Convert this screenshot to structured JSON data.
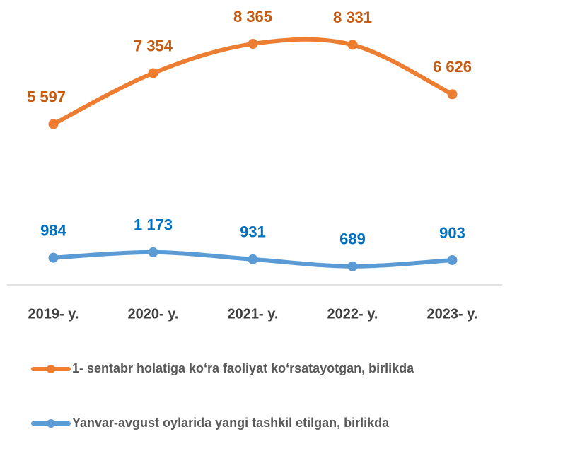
{
  "chart_data": {
    "type": "line",
    "categories": [
      "2019- y.",
      "2020- y.",
      "2021- y.",
      "2022- y.",
      "2023- y."
    ],
    "series": [
      {
        "name": "1- sentabr holatiga ko‘ra faoliyat ko‘rsatayotgan, birlikda",
        "color": "#ED7D31",
        "label_color": "#C55A11",
        "values": [
          5597,
          7354,
          8365,
          8331,
          6626
        ],
        "value_labels": [
          "5 597",
          "7 354",
          "8 365",
          "8 331",
          "6 626"
        ]
      },
      {
        "name": "Yanvar-avgust oylarida yangi tashkil etilgan, birlikda",
        "color": "#5B9BD5",
        "label_color": "#0070C0",
        "values": [
          984,
          1173,
          931,
          689,
          903
        ],
        "value_labels": [
          "984",
          "1 173",
          "931",
          "689",
          "903"
        ]
      }
    ],
    "ylim": [
      0,
      10000
    ],
    "smooth": true,
    "legend": "bottom"
  }
}
